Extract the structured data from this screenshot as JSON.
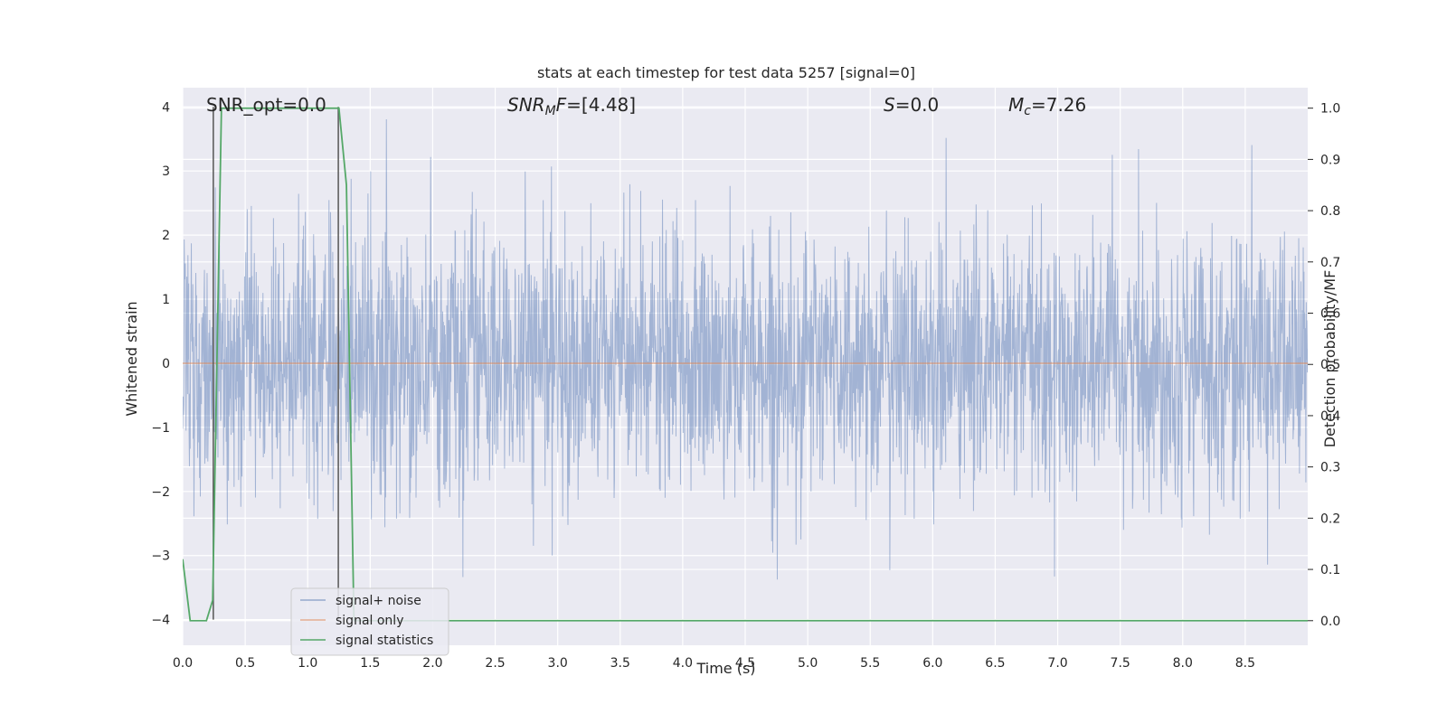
{
  "chart_data": {
    "type": "line",
    "title": "stats at each timestep for test data 5257 [signal=0]",
    "xlabel": "Time (s)",
    "ylabel_left": "Whitened strain",
    "ylabel_right": "Detection probability/MF",
    "xlim": [
      0.0,
      9.0
    ],
    "ylim_left": [
      -4.4,
      4.3
    ],
    "ylim_right": [
      -0.048,
      1.04
    ],
    "x_ticks": [
      "0.0",
      "0.5",
      "1.0",
      "1.5",
      "2.0",
      "2.5",
      "3.0",
      "3.5",
      "4.0",
      "4.5",
      "5.0",
      "5.5",
      "6.0",
      "6.5",
      "7.0",
      "7.5",
      "8.0",
      "8.5"
    ],
    "y_left_ticks": [
      "4",
      "3",
      "2",
      "1",
      "0",
      "−1",
      "−2",
      "−3",
      "−4"
    ],
    "y_right_ticks": [
      "1.0",
      "0.9",
      "0.8",
      "0.7",
      "0.6",
      "0.5",
      "0.4",
      "0.3",
      "0.2",
      "0.1",
      "0.0"
    ],
    "grid": true,
    "background": "#eaeaf2",
    "annotations": {
      "snr_opt": "SNR_opt=0.0",
      "snr_mf_main": "SNR",
      "snr_mf_sub": "M",
      "snr_mf_tail": "F",
      "snr_mf_value": "=[4.48]",
      "s_var": "S",
      "s_value": "=0.0",
      "mc_var": "M",
      "mc_sub": "c",
      "mc_value": "=7.26"
    },
    "vertical_markers_x": [
      0.245,
      1.245
    ],
    "series": [
      {
        "name": "signal+ noise",
        "color": "#4c72b0",
        "axis": "left",
        "noise": {
          "x_start": 0.0,
          "x_end": 9.0,
          "std": 1.0,
          "samples": 3000
        }
      },
      {
        "name": "signal only",
        "color": "#dd8452",
        "axis": "left",
        "x": [
          0.0,
          9.0
        ],
        "y": [
          0.0,
          0.0
        ]
      },
      {
        "name": "signal statistics",
        "color": "#55a868",
        "axis": "right",
        "x": [
          0.0,
          0.06,
          0.19,
          0.24,
          0.31,
          0.5,
          1.0,
          1.25,
          1.31,
          1.37,
          9.0
        ],
        "y": [
          0.12,
          0.0,
          0.0,
          0.04,
          1.0,
          1.0,
          1.0,
          1.0,
          0.85,
          0.0,
          0.0
        ]
      }
    ],
    "legend": {
      "placement": "lower-left",
      "entries": [
        "signal+ noise",
        "signal only",
        "signal statistics"
      ]
    }
  }
}
